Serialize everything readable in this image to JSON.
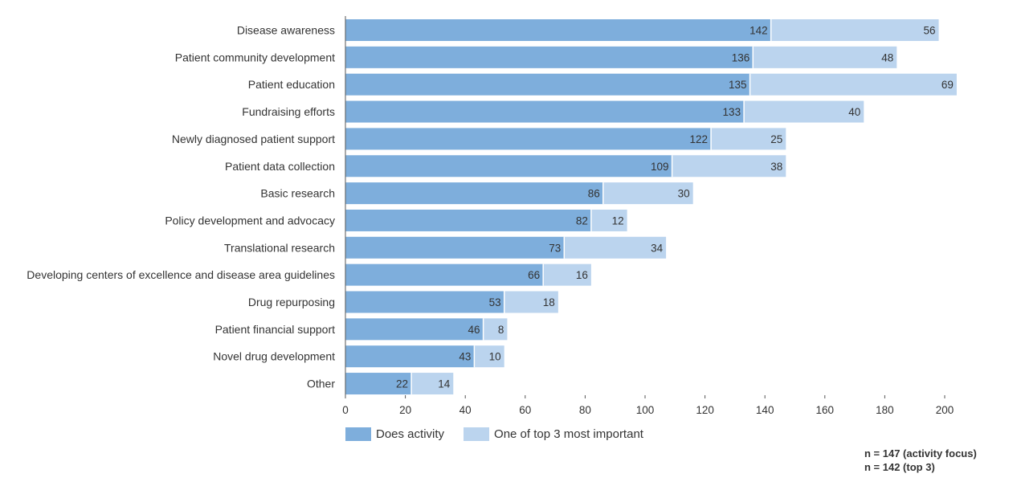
{
  "colors": {
    "primary": "#7eaedc",
    "secondary": "#bbd4ee"
  },
  "chart_data": {
    "type": "bar",
    "orientation": "horizontal",
    "stacked": true,
    "categories": [
      "Disease awareness",
      "Patient community development",
      "Patient education",
      "Fundraising efforts",
      "Newly diagnosed patient support",
      "Patient data collection",
      "Basic research",
      "Policy development and advocacy",
      "Translational research",
      "Developing centers of excellence and disease area guidelines",
      "Drug repurposing",
      "Patient financial support",
      "Novel drug development",
      "Other"
    ],
    "series": [
      {
        "name": "Does activity",
        "values": [
          142,
          136,
          135,
          133,
          122,
          109,
          86,
          82,
          73,
          66,
          53,
          46,
          43,
          22
        ]
      },
      {
        "name": "One of top 3 most important",
        "values": [
          56,
          48,
          69,
          40,
          25,
          38,
          30,
          12,
          34,
          16,
          18,
          8,
          10,
          14
        ]
      }
    ],
    "xlim": [
      0,
      200
    ],
    "xticks": [
      0,
      20,
      40,
      60,
      80,
      100,
      120,
      140,
      160,
      180,
      200
    ],
    "grid": false,
    "legend": "bottom-left",
    "notes": [
      "n  = 147 (activity focus)",
      "n = 142 (top 3)"
    ]
  }
}
